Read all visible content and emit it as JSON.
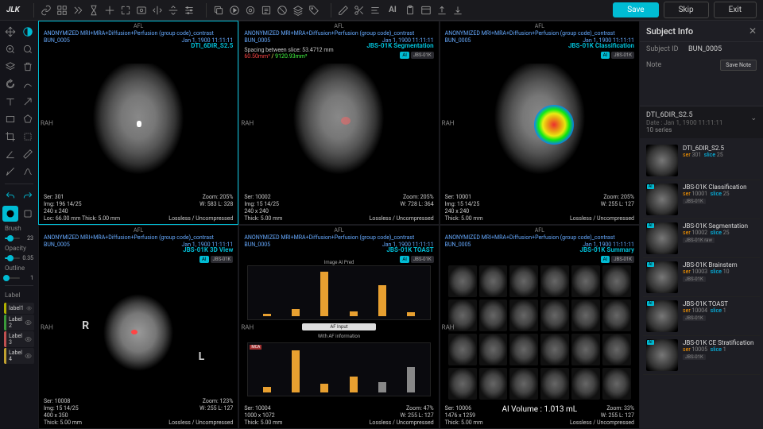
{
  "logo": "JLK",
  "buttons": {
    "save": "Save",
    "skip": "Skip",
    "exit": "Exit"
  },
  "brush": {
    "label": "Brush",
    "val": "23",
    "pct": 35
  },
  "opacity": {
    "label": "Opacity",
    "val": "0.35",
    "pct": 35
  },
  "outline": {
    "label": "Outline",
    "val": "1",
    "pct": 10
  },
  "label_section": "Label",
  "labels": [
    {
      "name": "label1",
      "color": "#b0b000"
    },
    {
      "name": "Label 2",
      "color": "#3a9a3a"
    },
    {
      "name": "Label 3",
      "color": "#c05050"
    },
    {
      "name": "Label 4",
      "color": "#c0a030"
    }
  ],
  "common": {
    "afl": "AFL",
    "study": "ANONYMIZED MRI+MRA+Diffusion+Perfusion (group code)_contrast",
    "bun": "BUN_0005",
    "date": "Jan 1, 1900 11:11:11",
    "rah": "RAH",
    "lossless": "Lossless / Uncompressed"
  },
  "vp": [
    {
      "title": "DTI_6DIR_S2.5",
      "ser": "Ser: 301",
      "img": "Img: 196 14/25",
      "dim": "240 x 240",
      "loc": "Loc: 66.00 mm Thick: 5.00 mm",
      "zoom": "Zoom: 205%",
      "wl": "W: 583 L: 328"
    },
    {
      "title": "JBS-01K Segmentation",
      "spacing": "Spacing between slice: 53.4712 mm",
      "vol": "60.50mm³ / 9120.93mm³",
      "ser": "Ser: 10002",
      "img": "Img: 15 14/25",
      "dim": "240 x 240",
      "thick": "Thick: 5.00 mm",
      "zoom": "Zoom: 205%",
      "wl": "W: 728 L: 364"
    },
    {
      "title": "JBS-01K Classification",
      "ser": "Ser: 10001",
      "img": "Img: 15 14/25",
      "dim": "240 x 240",
      "thick": "Thick: 5.00 mm",
      "zoom": "Zoom: 205%",
      "wl": "W: 255 L: 127"
    },
    {
      "title": "JBS-01K 3D View",
      "ser": "Ser: 10008",
      "img": "Img: 15 14/25",
      "dim": "400 x 350",
      "thick": "Thick: 5.00 mm",
      "zoom": "Zoom: 123%",
      "wl": "W: 255 L: 127"
    },
    {
      "title": "JBS-01K TOAST",
      "ser": "Ser: 10004",
      "dim": "1000 x 1072",
      "thick": "Thick: 5.00 mm",
      "zoom": "Zoom: 47%",
      "wl": "W: 255 L: 127"
    },
    {
      "title": "JBS-01K Summary",
      "ser": "Ser: 10006",
      "dim": "1476 x 1259",
      "thick": "Thick: 5.00 mm",
      "zoom": "Zoom: 33%",
      "wl": "W: 255 L: 127",
      "aivol": "AI Volume : 1.013 mL"
    }
  ],
  "chart": {
    "t1": "Image AI Pred",
    "t2": "AF Input",
    "t3": "With AF information",
    "bars1": [
      5,
      15,
      95,
      10,
      65,
      8
    ],
    "bars2": [
      12,
      90,
      18,
      35,
      22,
      55
    ]
  },
  "panel": {
    "title": "Subject Info",
    "id_label": "Subject ID",
    "id_val": "BUN_0005",
    "note_label": "Note",
    "save_note": "Save Note",
    "series_name": "DTI_6DIR_S2.5",
    "series_date": "Date : Jan 1, 1900 11:11:11",
    "series_count": "10 series"
  },
  "series": [
    {
      "title": "DTI_6DIR_S2.5",
      "ser": "301",
      "slice": "25",
      "ai": false,
      "tag": ""
    },
    {
      "title": "JBS-01K Classification",
      "ser": "10001",
      "slice": "25",
      "ai": true,
      "tag": "JBS-01K"
    },
    {
      "title": "JBS-01K Segmentation",
      "ser": "10002",
      "slice": "25",
      "ai": true,
      "tag": "JBS-01K   raw"
    },
    {
      "title": "JBS-01K Brainstem",
      "ser": "10003",
      "slice": "10",
      "ai": true,
      "tag": "JBS-01K"
    },
    {
      "title": "JBS-01K TOAST",
      "ser": "10004",
      "slice": "1",
      "ai": true,
      "tag": "JBS-01K"
    },
    {
      "title": "JBS-01K CE Stratification",
      "ser": "10005",
      "slice": "1",
      "ai": true,
      "tag": "JBS-01K"
    }
  ]
}
